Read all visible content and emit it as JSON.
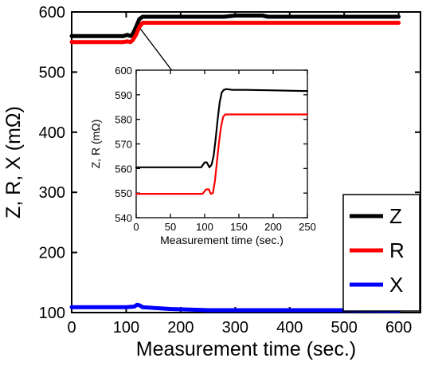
{
  "chart_data": [
    {
      "type": "line",
      "title": "",
      "xlabel": "Measurement time (sec.)",
      "ylabel": "Z, R, X (mΩ)",
      "xlim": [
        0,
        640
      ],
      "ylim": [
        100,
        600
      ],
      "xticks": [
        "0",
        "100",
        "200",
        "300",
        "400",
        "500",
        "600"
      ],
      "yticks": [
        "100",
        "200",
        "300",
        "400",
        "500",
        "600"
      ],
      "grid": false,
      "legend_position": "bottom-right",
      "series": [
        {
          "name": "Z",
          "color": "#000000",
          "x": [
            0,
            95,
            102,
            108,
            112,
            118,
            124,
            130,
            140,
            200,
            280,
            300,
            350,
            360,
            600
          ],
          "y": [
            560,
            560,
            562,
            560,
            563,
            575,
            588,
            592,
            592,
            592,
            592,
            594,
            594,
            592,
            592
          ]
        },
        {
          "name": "R",
          "color": "#ff0000",
          "x": [
            0,
            95,
            102,
            108,
            112,
            118,
            124,
            130,
            140,
            600
          ],
          "y": [
            550,
            550,
            551,
            550,
            553,
            562,
            575,
            582,
            582,
            582
          ]
        },
        {
          "name": "X",
          "color": "#0000ff",
          "x": [
            0,
            100,
            115,
            120,
            125,
            130,
            180,
            250,
            300,
            400,
            500,
            600
          ],
          "y": [
            109,
            109,
            110,
            113,
            112,
            109,
            106,
            104,
            104,
            104,
            104,
            103
          ]
        }
      ]
    },
    {
      "type": "line",
      "title": "",
      "xlabel": "Measurement time (sec.)",
      "ylabel": "Z, R (mΩ)",
      "xlim": [
        0,
        250
      ],
      "ylim": [
        540,
        600
      ],
      "xticks": [
        "0",
        "50",
        "100",
        "150",
        "200",
        "250"
      ],
      "yticks": [
        "540",
        "550",
        "560",
        "570",
        "580",
        "590",
        "600"
      ],
      "grid": false,
      "series": [
        {
          "color": "#000000",
          "x": [
            0,
            95,
            100,
            103,
            107,
            110,
            113,
            116,
            119,
            122,
            125,
            128,
            132,
            140,
            160,
            200,
            250
          ],
          "y": [
            560.5,
            560.5,
            562.5,
            562.5,
            560.5,
            561.5,
            565,
            572,
            580,
            587,
            591,
            592,
            592.3,
            592,
            592,
            591.8,
            591.5
          ]
        },
        {
          "color": "#ff0000",
          "x": [
            0,
            97,
            102,
            106,
            109,
            112,
            115,
            118,
            121,
            124,
            127,
            130,
            250
          ],
          "y": [
            549.7,
            549.7,
            551.5,
            551.5,
            549.7,
            550,
            555,
            563,
            571,
            577,
            581,
            582,
            582
          ]
        }
      ]
    }
  ]
}
